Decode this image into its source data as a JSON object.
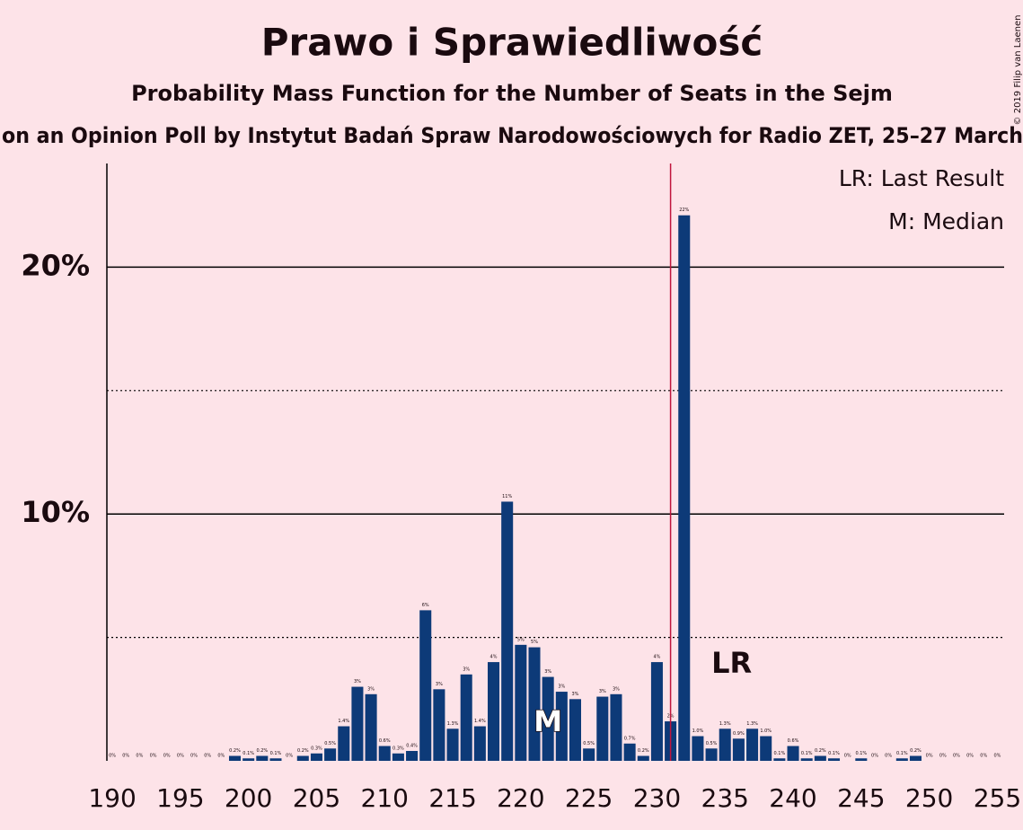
{
  "chart_data": {
    "type": "bar",
    "title": "Prawo i Sprawiedliwość",
    "subtitle": "Probability Mass Function for the Number of Seats in the Sejm",
    "subtitle2": "on an Opinion Poll by Instytut Badań Spraw Narodowościowych for Radio ZET, 25–27 March",
    "copyright": "© 2019 Filip van Laenen",
    "legend": [
      "LR: Last Result",
      "M: Median"
    ],
    "x": [
      190,
      191,
      192,
      193,
      194,
      195,
      196,
      197,
      198,
      199,
      200,
      201,
      202,
      203,
      204,
      205,
      206,
      207,
      208,
      209,
      210,
      211,
      212,
      213,
      214,
      215,
      216,
      217,
      218,
      219,
      220,
      221,
      222,
      223,
      224,
      225,
      226,
      227,
      228,
      229,
      230,
      231,
      232,
      233,
      234,
      235,
      236,
      237,
      238,
      239,
      240,
      241,
      242,
      243,
      244,
      245,
      246,
      247,
      248,
      249,
      250,
      251,
      252,
      253,
      254,
      255
    ],
    "values": [
      0,
      0,
      0,
      0,
      0,
      0,
      0,
      0,
      0,
      0.2,
      0.1,
      0.2,
      0.1,
      0,
      0.2,
      0.3,
      0.5,
      1.4,
      3.0,
      2.7,
      0.6,
      0.3,
      0.4,
      6.1,
      2.9,
      1.3,
      3.5,
      1.4,
      4.0,
      10.5,
      4.7,
      4.6,
      3.4,
      2.8,
      2.5,
      0.5,
      2.6,
      2.7,
      0.7,
      0.2,
      4.0,
      1.6,
      22.1,
      1.0,
      0.5,
      1.3,
      0.9,
      1.3,
      1.0,
      0.1,
      0.6,
      0.1,
      0.2,
      0.1,
      0,
      0.1,
      0,
      0,
      0.1,
      0.2,
      0,
      0,
      0,
      0,
      0,
      0
    ],
    "value_labels": [
      "0%",
      "0%",
      "0%",
      "0%",
      "0%",
      "0%",
      "0%",
      "0%",
      "0%",
      "0.2%",
      "0.1%",
      "0.2%",
      "0.1%",
      "0%",
      "0.2%",
      "0.3%",
      "0.5%",
      "1.4%",
      "3%",
      "3%",
      "0.6%",
      "0.3%",
      "0.4%",
      "6%",
      "3%",
      "1.3%",
      "3%",
      "1.4%",
      "4%",
      "11%",
      "5%",
      "5%",
      "3%",
      "3%",
      "3%",
      "0.5%",
      "3%",
      "3%",
      "0.7%",
      "0.2%",
      "4%",
      "2%",
      "22%",
      "1.0%",
      "0.5%",
      "1.3%",
      "0.9%",
      "1.3%",
      "1.0%",
      "0.1%",
      "0.6%",
      "0.1%",
      "0.2%",
      "0.1%",
      "0%",
      "0.1%",
      "0%",
      "0%",
      "0.1%",
      "0.2%",
      "0%",
      "0%",
      "0%",
      "0%",
      "0%",
      "0%"
    ],
    "color": "#0d3a78",
    "xlim": [
      189.6,
      255.5
    ],
    "xticks": [
      190,
      195,
      200,
      205,
      210,
      215,
      220,
      225,
      230,
      235,
      240,
      245,
      250,
      255
    ],
    "ylim": [
      0,
      24.2
    ],
    "yticks": [
      {
        "value": 10,
        "label": "10%"
      },
      {
        "value": 20,
        "label": "20%"
      }
    ],
    "minor_gridlines": [
      5,
      15
    ],
    "last_result": 231,
    "last_result_label": "LR",
    "last_result_color": "#c0143c",
    "median": 222,
    "median_label": "M"
  }
}
